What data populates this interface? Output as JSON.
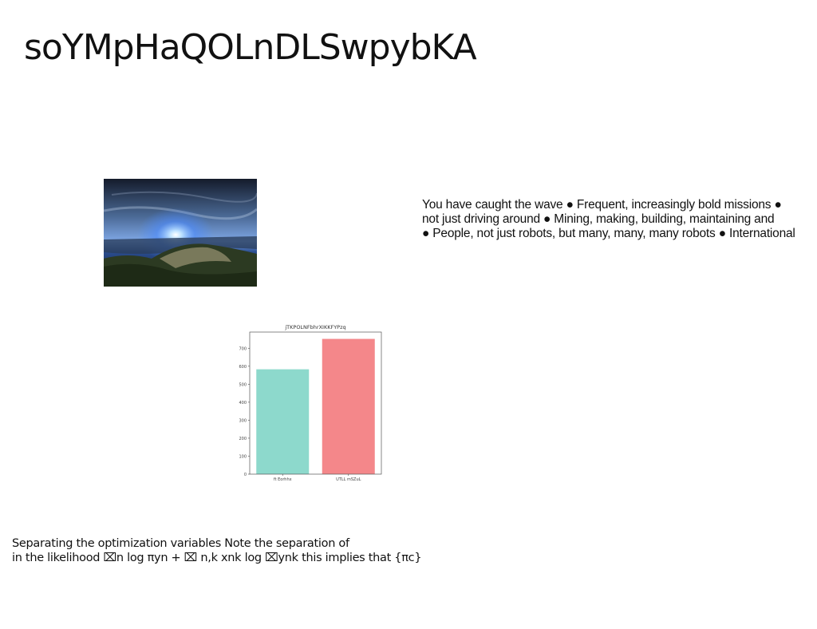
{
  "slide": {
    "title": "soYMpHaQOLnDLSwpybKA",
    "bullet_lines": [
      "You have caught the wave ● Frequent, increasingly bold missions ●",
      "not just driving around ● Mining, making, building, maintaining and",
      "● People, not just robots, but many, many, many robots ● International"
    ],
    "footer_lines": [
      "Separating the optimization variables Note the separation of",
      "in the likelihood ⌧n log πyn + ⌧ n,k xnk log ⌧ynk this implies that {πc}"
    ]
  },
  "photo": {
    "icon": "sunset-landscape-photo"
  },
  "chart_data": {
    "type": "bar",
    "title": "jTKPOLNFbhrXIKKFYPzq",
    "categories": [
      "ft Eorhhx",
      "UTLL mSZuL"
    ],
    "values": [
      583,
      752
    ],
    "colors": [
      "#8dd9cc",
      "#f4878a"
    ],
    "ylim": [
      0,
      790
    ],
    "yticks": [
      0,
      100,
      200,
      300,
      400,
      500,
      600,
      700
    ],
    "xlabel": "",
    "ylabel": ""
  }
}
